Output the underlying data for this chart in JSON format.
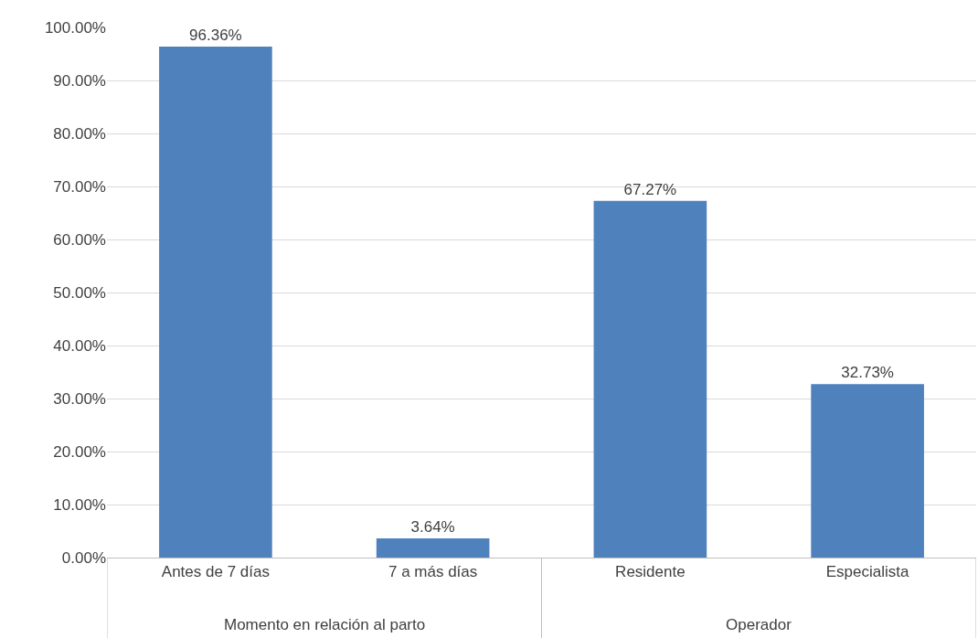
{
  "chart_data": {
    "type": "bar",
    "categories": [
      "Antes de 7 días",
      "7 a más días",
      "Residente",
      "Especialista"
    ],
    "values": [
      96.36,
      3.64,
      67.27,
      32.73
    ],
    "value_labels": [
      "96.36%",
      "3.64%",
      "67.27%",
      "32.73%"
    ],
    "color": "#4f81bd",
    "ylim": [
      0,
      100
    ],
    "yticks": [
      {
        "value": 0,
        "label": "0.00%"
      },
      {
        "value": 10,
        "label": "10.00%"
      },
      {
        "value": 20,
        "label": "20.00%"
      },
      {
        "value": 30,
        "label": "30.00%"
      },
      {
        "value": 40,
        "label": "40.00%"
      },
      {
        "value": 50,
        "label": "50.00%"
      },
      {
        "value": 60,
        "label": "60.00%"
      },
      {
        "value": 70,
        "label": "70.00%"
      },
      {
        "value": 80,
        "label": "80.00%"
      },
      {
        "value": 90,
        "label": "90.00%"
      },
      {
        "value": 100,
        "label": "100.00%"
      }
    ],
    "grid": "y",
    "legend": false,
    "annotations": [
      "Momento en relación al parto",
      "Operador"
    ]
  }
}
